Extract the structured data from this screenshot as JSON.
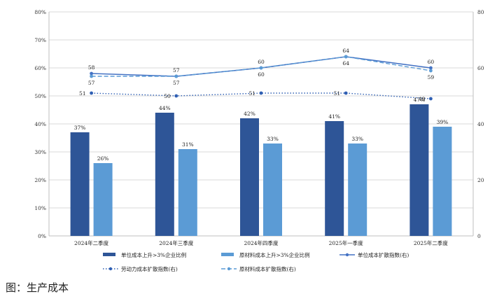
{
  "caption": "图：生产成本",
  "chart_data": {
    "type": "bar",
    "categories": [
      "2024年二季度",
      "2024年三季度",
      "2024年四季度",
      "2025年一季度",
      "2025年二季度"
    ],
    "left_axis": {
      "ticks": [
        "0%",
        "10%",
        "20%",
        "30%",
        "40%",
        "50%",
        "60%",
        "70%",
        "80%"
      ],
      "ylim": [
        0,
        80
      ]
    },
    "right_axis": {
      "ticks": [
        "0",
        "20",
        "40",
        "60",
        "80"
      ],
      "ylim": [
        0,
        80
      ]
    },
    "grid": true,
    "bar_series": [
      {
        "name": "单位成本上升>3%企业比例",
        "values": [
          37,
          44,
          42,
          41,
          47
        ],
        "labels": [
          "37%",
          "44%",
          "42%",
          "41%",
          "47%"
        ],
        "color": "#2e5597"
      },
      {
        "name": "原材料成本上升>3%企业比例",
        "values": [
          26,
          31,
          33,
          33,
          39
        ],
        "labels": [
          "26%",
          "31%",
          "33%",
          "33%",
          "39%"
        ],
        "color": "#5b9bd5"
      }
    ],
    "line_series": [
      {
        "name": "单位成本扩散指数(右)",
        "values": [
          58,
          57,
          60,
          64,
          60
        ],
        "color": "#4472c4",
        "style": "solid"
      },
      {
        "name": "劳动力成本扩散指数(右)",
        "values": [
          51,
          50,
          51,
          51,
          49
        ],
        "color": "#2f5fb3",
        "style": "dotted"
      },
      {
        "name": "原材料成本扩散指数(右)",
        "values": [
          57,
          57,
          60,
          64,
          59
        ],
        "color": "#5b9bd5",
        "style": "dashed"
      }
    ],
    "legend": [
      "单位成本上升>3%企业比例",
      "原材料成本上升>3%企业比例",
      "单位成本扩散指数(右)",
      "劳动力成本扩散指数(右)",
      "原材料成本扩散指数(右)"
    ],
    "legend_position": "bottom"
  }
}
